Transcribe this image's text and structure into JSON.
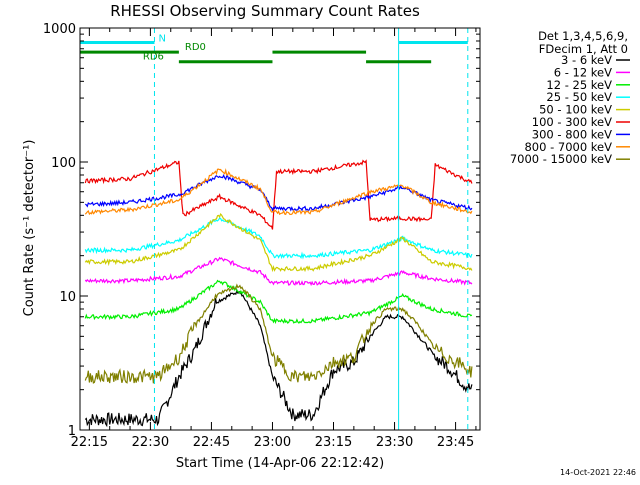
{
  "footer": {
    "timestamp": "14-Oct-2021 22:46"
  },
  "legend": {
    "header": [
      "Det 1,3,4,5,6,9,",
      "FDecim 1, Att 0"
    ]
  },
  "chart_data": {
    "type": "line",
    "title": "RHESSI Observing Summary Count Rates",
    "xlabel": "Start Time (14-Apr-06 22:12:42)",
    "ylabel": "Count Rate (s⁻¹ detector⁻¹)",
    "ylog": true,
    "ylim": [
      1,
      1000
    ],
    "xlim": [
      "22:12:42",
      "23:51:00"
    ],
    "x_ticks": [
      "22:15",
      "22:30",
      "22:45",
      "23:00",
      "23:15",
      "23:30",
      "23:45"
    ],
    "y_ticks": [
      "1",
      "10",
      "100",
      "1000"
    ],
    "grid": false,
    "legend_position": "right",
    "colors": {
      "3 - 6 keV": "#000000",
      "6 - 12 keV": "#ff00ff",
      "12 - 25 keV": "#00ee00",
      "25 - 50 keV": "#00ffff",
      "50 - 100 keV": "#cccc00",
      "100 - 300 keV": "#ee0000",
      "300 - 800 keV": "#0000ff",
      "800 - 7000 keV": "#ff8800",
      "7000 - 15000 keV": "#808000",
      "N": "#00e5ee",
      "RD0": "#008800",
      "RD6": "#008800"
    },
    "series": [
      {
        "name": "3 - 6 keV",
        "x": [
          "22:14",
          "22:20",
          "22:26",
          "22:32",
          "22:37",
          "22:41",
          "22:46",
          "22:52",
          "22:57",
          "23:00",
          "23:05",
          "23:10",
          "23:15",
          "23:20",
          "23:24",
          "23:28",
          "23:32",
          "23:36",
          "23:40",
          "23:43",
          "23:47",
          "23:49"
        ],
        "y": [
          1.2,
          1.2,
          1.2,
          1.2,
          2.5,
          4,
          9,
          11,
          6,
          2.5,
          1.3,
          1.3,
          2.8,
          3.2,
          5,
          7,
          7,
          5,
          3.5,
          3,
          2.2,
          2
        ]
      },
      {
        "name": "6 - 12 keV",
        "x": [
          "22:14",
          "22:25",
          "22:37",
          "22:47",
          "22:57",
          "23:00",
          "23:10",
          "23:24",
          "23:32",
          "23:39",
          "23:49"
        ],
        "y": [
          13,
          13,
          14,
          19,
          15,
          12.5,
          12.5,
          13,
          15,
          13.5,
          12.5
        ]
      },
      {
        "name": "12 - 25 keV",
        "x": [
          "22:14",
          "22:25",
          "22:37",
          "22:47",
          "22:57",
          "23:00",
          "23:10",
          "23:24",
          "23:32",
          "23:39",
          "23:49"
        ],
        "y": [
          7,
          7,
          8,
          13,
          9,
          6.5,
          6.5,
          7.5,
          10,
          8,
          7
        ]
      },
      {
        "name": "25 - 50 keV",
        "x": [
          "22:14",
          "22:25",
          "22:37",
          "22:47",
          "22:57",
          "23:00",
          "23:10",
          "23:24",
          "23:32",
          "23:39",
          "23:49"
        ],
        "y": [
          22,
          22,
          26,
          38,
          28,
          20,
          20,
          22,
          27,
          22,
          20
        ]
      },
      {
        "name": "50 - 100 keV",
        "x": [
          "22:14",
          "22:25",
          "22:37",
          "22:47",
          "22:57",
          "23:00",
          "23:10",
          "23:24",
          "23:32",
          "23:39",
          "23:49"
        ],
        "y": [
          18,
          18,
          22,
          40,
          26,
          16,
          16,
          20,
          27,
          18,
          16
        ]
      },
      {
        "name": "100 - 300 keV",
        "x": [
          "22:14",
          "22:25",
          "22:37",
          "22:38",
          "22:47",
          "22:57",
          "23:00",
          "23:01",
          "23:10",
          "23:23",
          "23:24",
          "23:32",
          "23:39",
          "23:40",
          "23:49"
        ],
        "y": [
          72,
          75,
          100,
          40,
          55,
          40,
          32,
          85,
          85,
          100,
          37,
          38,
          37,
          95,
          70
        ]
      },
      {
        "name": "300 - 800 keV",
        "x": [
          "22:14",
          "22:25",
          "22:37",
          "22:47",
          "22:57",
          "23:00",
          "23:10",
          "23:24",
          "23:32",
          "23:39",
          "23:49"
        ],
        "y": [
          48,
          50,
          57,
          80,
          62,
          45,
          45,
          55,
          65,
          52,
          45
        ]
      },
      {
        "name": "800 - 7000 keV",
        "x": [
          "22:14",
          "22:25",
          "22:37",
          "22:47",
          "22:57",
          "23:00",
          "23:10",
          "23:24",
          "23:32",
          "23:39",
          "23:49"
        ],
        "y": [
          42,
          44,
          52,
          88,
          63,
          42,
          42,
          60,
          67,
          50,
          42
        ]
      },
      {
        "name": "7000 - 15000 keV",
        "x": [
          "22:14",
          "22:20",
          "22:26",
          "22:32",
          "22:37",
          "22:41",
          "22:46",
          "22:52",
          "22:57",
          "23:00",
          "23:05",
          "23:10",
          "23:15",
          "23:20",
          "23:24",
          "23:28",
          "23:32",
          "23:36",
          "23:40",
          "23:43",
          "23:47",
          "23:49"
        ],
        "y": [
          2.5,
          2.5,
          2.5,
          2.5,
          3.5,
          6,
          10,
          12,
          8,
          3.5,
          2.5,
          2.5,
          3.2,
          3.5,
          6,
          8,
          8,
          6,
          4,
          3.5,
          3,
          2.7
        ]
      }
    ],
    "annotations": [
      {
        "label": "N",
        "level": 780,
        "spans": [
          [
            "22:12:42",
            "22:31"
          ],
          [
            "23:31",
            "23:48"
          ]
        ]
      },
      {
        "label": "RD0",
        "level": 660,
        "spans": [
          [
            "22:12:42",
            "22:37"
          ],
          [
            "23:00",
            "23:23"
          ]
        ]
      },
      {
        "label": "RD6",
        "level": 560,
        "spans": [
          [
            "22:37",
            "23:00"
          ],
          [
            "23:23",
            "23:39"
          ]
        ]
      }
    ],
    "vlines_solid": [
      "22:12:42",
      "23:31"
    ],
    "vlines_dashed": [
      "22:31",
      "23:48"
    ]
  }
}
